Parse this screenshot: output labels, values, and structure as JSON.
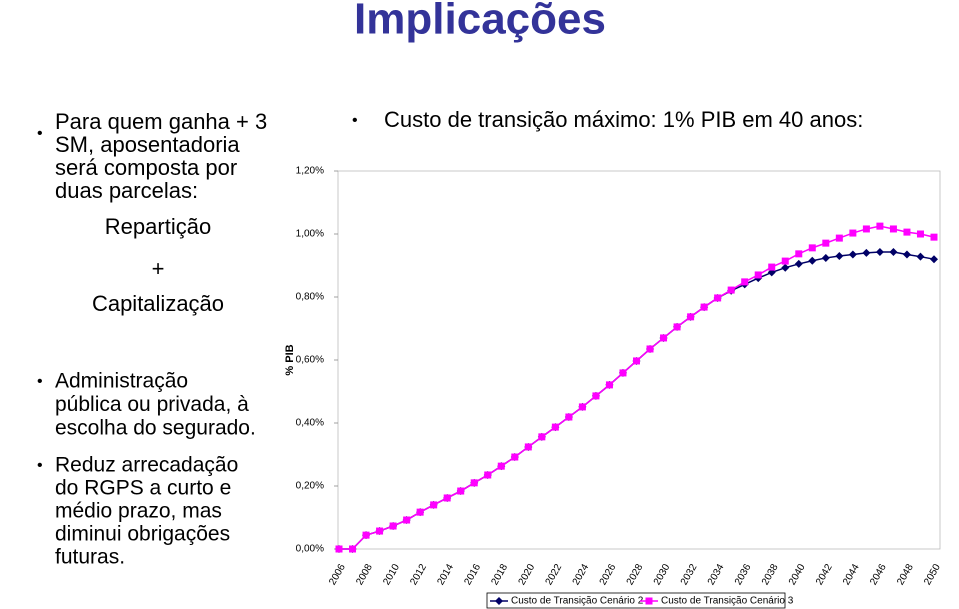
{
  "title": "Implicações",
  "left": {
    "bullet1": [
      "Para quem ganha + 3",
      "SM, aposentadoria",
      "será composta por",
      "duas parcelas:"
    ],
    "parts": [
      "Repartição",
      "+",
      "Capitalização"
    ],
    "bullet2": [
      "Administração",
      "pública ou privada, à",
      "escolha do segurado."
    ],
    "bullet3": [
      "Reduz arrecadação",
      "do RGPS a curto e",
      "médio prazo, mas",
      "diminui obrigações",
      "futuras."
    ]
  },
  "chart_data": {
    "type": "line",
    "title": "Custo de transição máximo: 1% PIB em 40 anos:",
    "y_label": "% PIB",
    "categories": [
      "2006",
      null,
      "2008",
      null,
      "2010",
      null,
      "2012",
      null,
      "2014",
      null,
      "2016",
      null,
      "2018",
      null,
      "2020",
      null,
      "2022",
      null,
      "2024",
      null,
      "2026",
      null,
      "2028",
      null,
      "2030",
      null,
      "2032",
      null,
      "2034",
      null,
      "2036",
      null,
      "2038",
      null,
      "2040",
      null,
      "2042",
      null,
      "2044",
      null,
      "2046",
      null,
      "2048",
      null,
      "2050"
    ],
    "ylim": [
      0,
      1.2
    ],
    "yticks": [
      {
        "value": 0,
        "label": "0,00%"
      },
      {
        "value": 0.2,
        "label": "0,20%"
      },
      {
        "value": 0.4,
        "label": "0,40%"
      },
      {
        "value": 0.6,
        "label": "0,60%"
      },
      {
        "value": 0.8,
        "label": "0,80%"
      },
      {
        "value": 1.0,
        "label": "1,00%"
      },
      {
        "value": 1.2,
        "label": "1,20%"
      }
    ],
    "series": [
      {
        "name": "Custo de Transição Cenário 2",
        "color": "#000066",
        "marker": "diamond",
        "values": [
          0,
          0,
          0.044,
          0.057,
          0.073,
          0.092,
          0.117,
          0.14,
          0.162,
          0.184,
          0.21,
          0.235,
          0.263,
          0.292,
          0.324,
          0.356,
          0.387,
          0.419,
          0.451,
          0.486,
          0.521,
          0.559,
          0.597,
          0.635,
          0.67,
          0.705,
          0.737,
          0.768,
          0.797,
          0.82,
          0.84,
          0.86,
          0.878,
          0.893,
          0.905,
          0.915,
          0.924,
          0.93,
          0.935,
          0.94,
          0.943,
          0.943,
          0.935,
          0.928,
          0.92
        ]
      },
      {
        "name": "Custo de Transição Cenário 3",
        "color": "#ff00ff",
        "marker": "square",
        "values": [
          0,
          0,
          0.044,
          0.057,
          0.073,
          0.092,
          0.117,
          0.14,
          0.162,
          0.184,
          0.21,
          0.235,
          0.263,
          0.292,
          0.324,
          0.356,
          0.387,
          0.419,
          0.451,
          0.486,
          0.521,
          0.559,
          0.597,
          0.635,
          0.67,
          0.705,
          0.737,
          0.768,
          0.797,
          0.822,
          0.848,
          0.87,
          0.895,
          0.914,
          0.937,
          0.956,
          0.971,
          0.987,
          1.003,
          1.016,
          1.025,
          1.016,
          1.006,
          1.0,
          0.99
        ]
      }
    ],
    "legend": "bottom"
  }
}
